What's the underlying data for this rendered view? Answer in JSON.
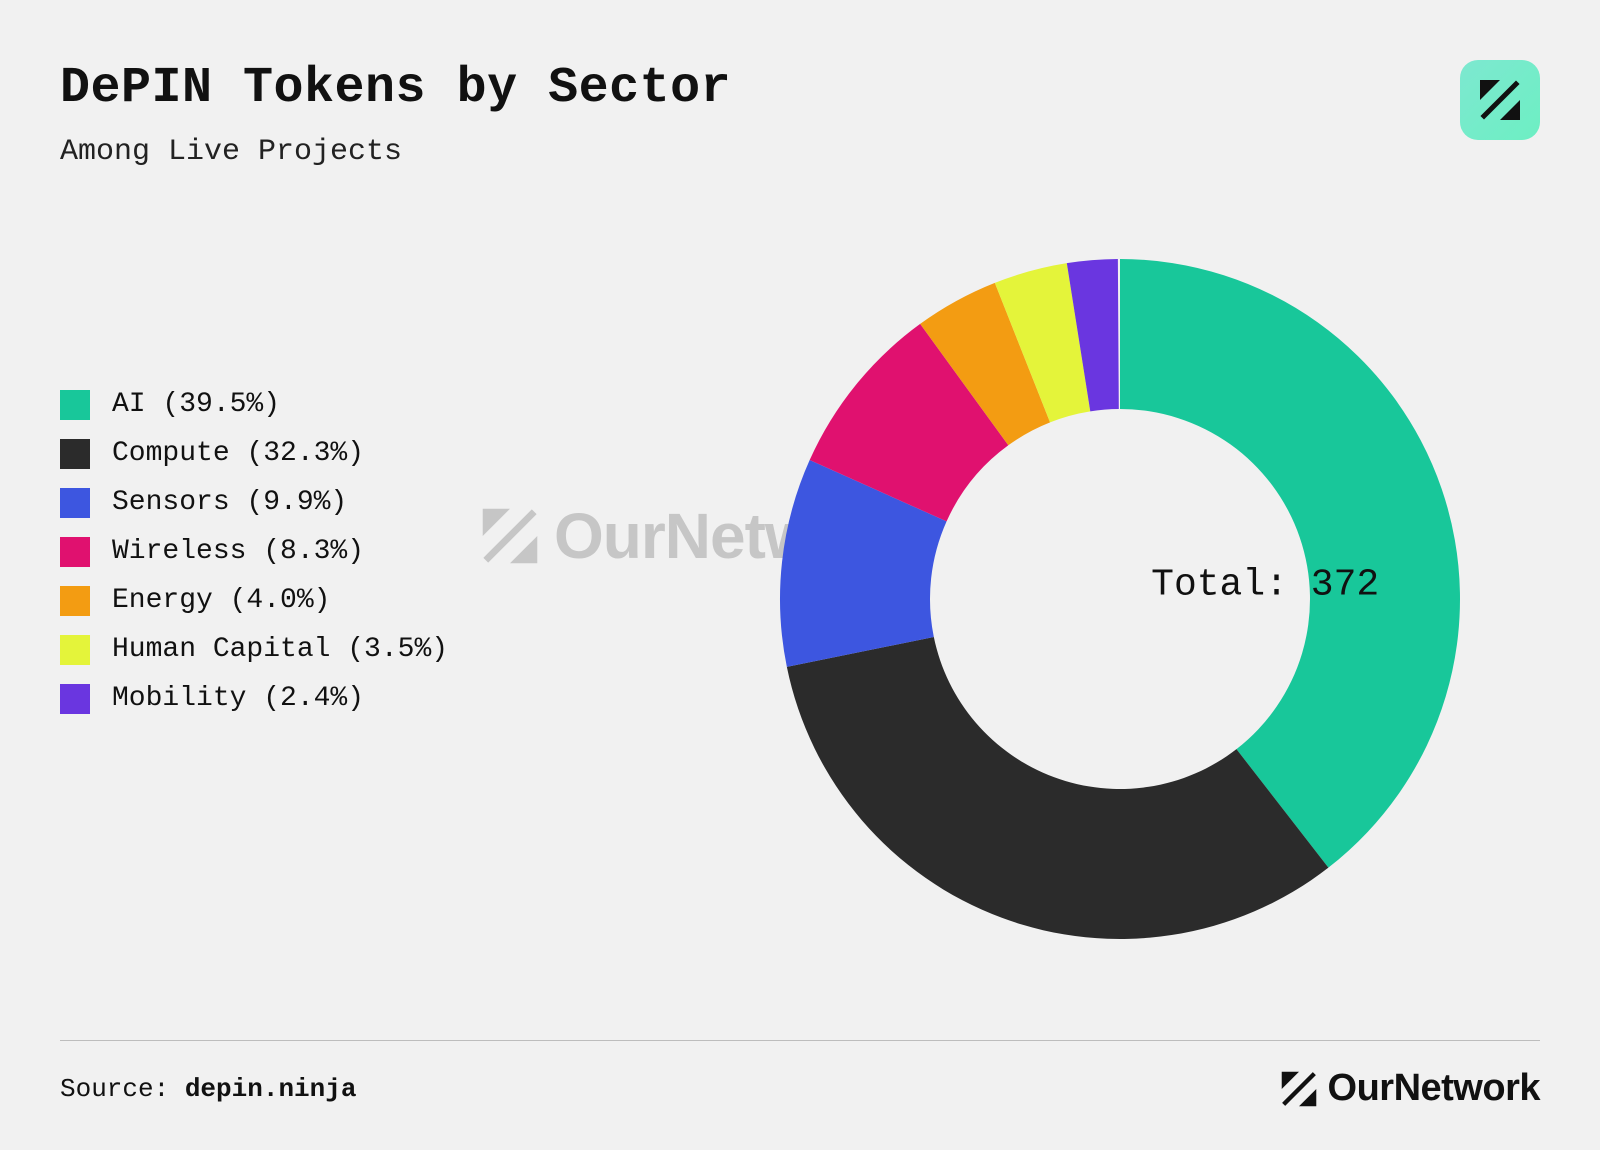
{
  "header": {
    "title": "DePIN Tokens by Sector",
    "subtitle": "Among Live Projects"
  },
  "brand": {
    "name": "OurNetwork",
    "badge_gradient_start": "#7de8d0",
    "badge_gradient_end": "#6defc3",
    "mark_color_dark": "#111111",
    "watermark_color": "#c6c6c6"
  },
  "chart": {
    "type": "donut",
    "background_color": "#f1f1f1",
    "outer_radius": 340,
    "inner_radius": 190,
    "start_angle_deg_from_top": 0,
    "direction": "clockwise",
    "center_label_prefix": "Total: ",
    "center_total": "372",
    "center_label_fontsize": 38,
    "legend_fontsize": 28,
    "legend_swatch_size": 30,
    "slices": [
      {
        "label": "AI",
        "percent": 39.5,
        "color": "#18c79a"
      },
      {
        "label": "Compute",
        "percent": 32.3,
        "color": "#2b2b2b"
      },
      {
        "label": "Sensors",
        "percent": 9.9,
        "color": "#3d56e0"
      },
      {
        "label": "Wireless",
        "percent": 8.3,
        "color": "#e0116f"
      },
      {
        "label": "Energy",
        "percent": 4.0,
        "color": "#f39c12"
      },
      {
        "label": "Human Capital",
        "percent": 3.5,
        "color": "#e4f43a"
      },
      {
        "label": "Mobility",
        "percent": 2.4,
        "color": "#6a36e0"
      }
    ]
  },
  "footer": {
    "source_prefix": "Source: ",
    "source_value": "depin.ninja",
    "source_fontsize": 26,
    "brand_text": "OurNetwork",
    "brand_fontsize": 38,
    "divider_color": "#bdbdbd"
  }
}
